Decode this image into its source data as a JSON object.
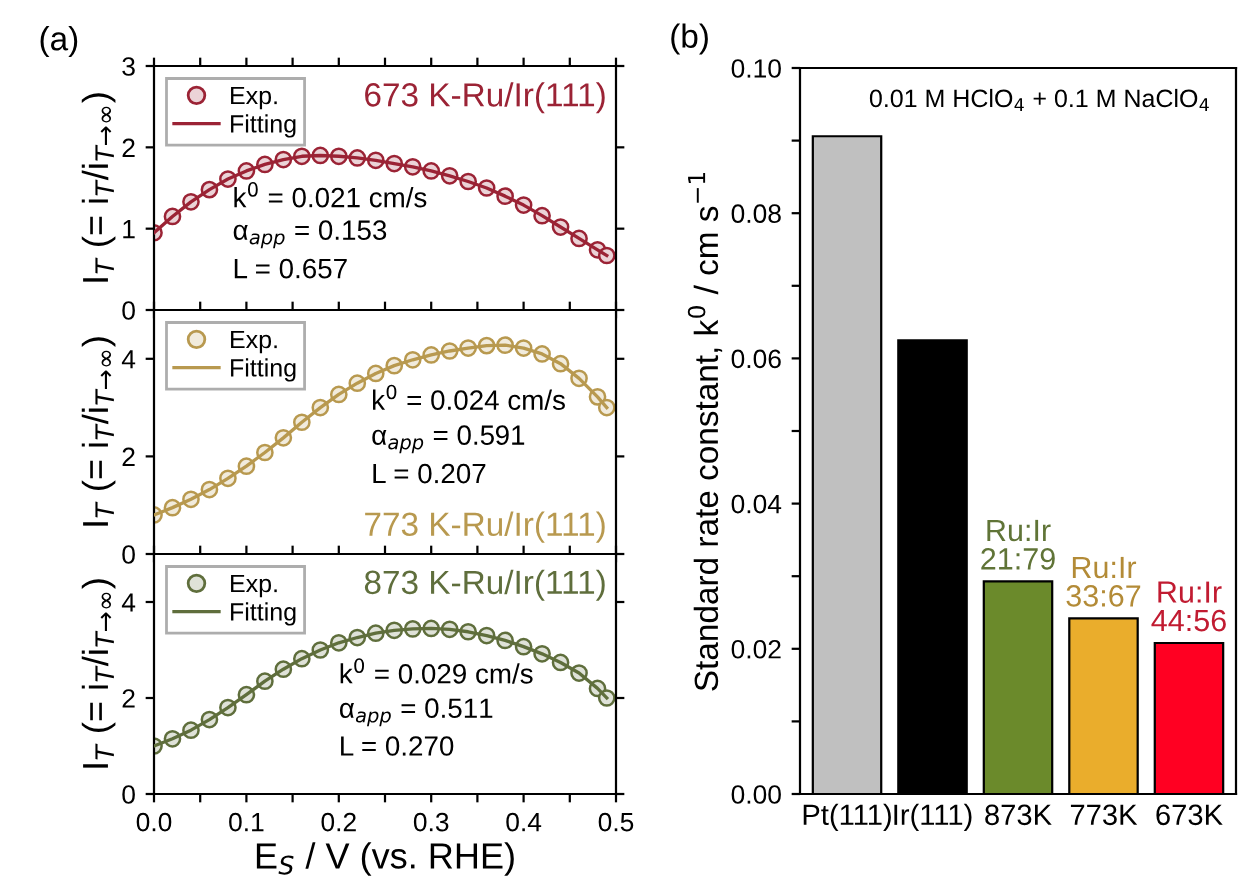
{
  "chart_data": [
    {
      "type": "line",
      "annotations": [
        "(a)",
        "673 K-Ru/Ir(111)",
        "k$^{0}$ = 0.021 cm/s",
        "α$_{app}$ = 0.153",
        "L = 0.657"
      ],
      "ylabel": "I$_{T}$ (= i$_{T}$/i$_{T→∞}$)",
      "xlim": [
        0,
        0.5
      ],
      "xticks": [
        0,
        {
          "value": 0.05,
          "label": null
        },
        0.1,
        {
          "value": 0.15,
          "label": null
        },
        0.2,
        {
          "value": 0.25,
          "label": null
        },
        0.3,
        {
          "value": 0.35,
          "label": null
        },
        0.4,
        {
          "value": 0.45,
          "label": null
        },
        0.5
      ],
      "ylim": [
        0,
        3
      ],
      "yticks": [
        0,
        1,
        2,
        3
      ],
      "tick_labels": "y",
      "legend": "top left",
      "x": [
        0,
        0.02,
        0.04,
        0.06,
        0.08,
        0.1,
        0.12,
        0.14,
        0.16,
        0.18,
        0.2,
        0.22,
        0.24,
        0.26,
        0.28,
        0.3,
        0.32,
        0.34,
        0.36,
        0.38,
        0.4,
        0.42,
        0.44,
        0.46,
        0.48,
        0.49
      ],
      "series": [
        {
          "name": "Exp.",
          "type": "scatter",
          "marker": "circle",
          "color": "#9b2335",
          "values": [
            0.95,
            1.15,
            1.33,
            1.48,
            1.61,
            1.71,
            1.79,
            1.85,
            1.89,
            1.9,
            1.89,
            1.87,
            1.84,
            1.8,
            1.76,
            1.71,
            1.65,
            1.58,
            1.5,
            1.4,
            1.29,
            1.16,
            1.02,
            0.88,
            0.74,
            0.67
          ]
        },
        {
          "name": "Fitting",
          "type": "line",
          "color": "#9b2335",
          "values": [
            0.95,
            1.15,
            1.33,
            1.48,
            1.61,
            1.71,
            1.79,
            1.85,
            1.89,
            1.9,
            1.89,
            1.87,
            1.84,
            1.8,
            1.76,
            1.71,
            1.65,
            1.58,
            1.5,
            1.4,
            1.29,
            1.16,
            1.02,
            0.88,
            0.74,
            0.67
          ]
        }
      ]
    },
    {
      "type": "line",
      "annotations": [
        "773 K-Ru/Ir(111)",
        "k$^{0}$ = 0.024 cm/s",
        "α$_{app}$ = 0.591",
        "L = 0.207"
      ],
      "ylabel": "I$_{T}$ (= i$_{T}$/i$_{T→∞}$)",
      "xlim": [
        0,
        0.5
      ],
      "xticks": [
        0,
        {
          "value": 0.05,
          "label": null
        },
        0.1,
        {
          "value": 0.15,
          "label": null
        },
        0.2,
        {
          "value": 0.25,
          "label": null
        },
        0.3,
        {
          "value": 0.35,
          "label": null
        },
        0.4,
        {
          "value": 0.45,
          "label": null
        },
        0.5
      ],
      "ylim": [
        0,
        5
      ],
      "yticks": [
        0,
        2,
        4
      ],
      "tick_labels": "y",
      "legend": "top left",
      "x": [
        0,
        0.02,
        0.04,
        0.06,
        0.08,
        0.1,
        0.12,
        0.14,
        0.16,
        0.18,
        0.2,
        0.22,
        0.24,
        0.26,
        0.28,
        0.3,
        0.32,
        0.34,
        0.36,
        0.38,
        0.4,
        0.42,
        0.44,
        0.46,
        0.48,
        0.49
      ],
      "series": [
        {
          "name": "Exp.",
          "type": "scatter",
          "marker": "circle",
          "color": "#b8994f",
          "values": [
            0.8,
            0.95,
            1.12,
            1.32,
            1.55,
            1.8,
            2.08,
            2.38,
            2.7,
            3.0,
            3.27,
            3.5,
            3.7,
            3.86,
            3.98,
            4.08,
            4.16,
            4.22,
            4.27,
            4.28,
            4.22,
            4.1,
            3.9,
            3.6,
            3.22,
            3.0
          ]
        },
        {
          "name": "Fitting",
          "type": "line",
          "color": "#b8994f",
          "values": [
            0.8,
            0.95,
            1.12,
            1.32,
            1.55,
            1.8,
            2.08,
            2.38,
            2.7,
            3.0,
            3.27,
            3.5,
            3.7,
            3.86,
            3.98,
            4.08,
            4.16,
            4.22,
            4.27,
            4.28,
            4.22,
            4.1,
            3.9,
            3.6,
            3.22,
            3.0
          ]
        }
      ]
    },
    {
      "type": "line",
      "annotations": [
        "873 K-Ru/Ir(111)",
        "k$^{0}$ = 0.029 cm/s",
        "α$_{app}$ = 0.511",
        "L = 0.270"
      ],
      "ylabel": "I$_{T}$ (= i$_{T}$/i$_{T→∞}$)",
      "xlabel": "E$_{S}$ / V (vs. RHE)",
      "xlim": [
        0,
        0.5
      ],
      "xticks": [
        {
          "value": 0,
          "label": "0.0"
        },
        {
          "value": 0.05,
          "label": null
        },
        0.1,
        {
          "value": 0.15,
          "label": null
        },
        0.2,
        {
          "value": 0.25,
          "label": null
        },
        0.3,
        {
          "value": 0.35,
          "label": null
        },
        0.4,
        {
          "value": 0.45,
          "label": null
        },
        0.5
      ],
      "ylim": [
        0,
        5
      ],
      "yticks": [
        0,
        2,
        4
      ],
      "legend": "top left",
      "x": [
        0,
        0.02,
        0.04,
        0.06,
        0.08,
        0.1,
        0.12,
        0.14,
        0.16,
        0.18,
        0.2,
        0.22,
        0.24,
        0.26,
        0.28,
        0.3,
        0.32,
        0.34,
        0.36,
        0.38,
        0.4,
        0.42,
        0.44,
        0.46,
        0.48,
        0.49
      ],
      "series": [
        {
          "name": "Exp.",
          "type": "scatter",
          "marker": "circle",
          "color": "#5f6e3c",
          "values": [
            1.0,
            1.15,
            1.33,
            1.55,
            1.8,
            2.07,
            2.35,
            2.6,
            2.82,
            3.0,
            3.15,
            3.26,
            3.35,
            3.41,
            3.44,
            3.45,
            3.43,
            3.38,
            3.3,
            3.2,
            3.07,
            2.92,
            2.74,
            2.52,
            2.2,
            2.0
          ]
        },
        {
          "name": "Fitting",
          "type": "line",
          "color": "#5f6e3c",
          "values": [
            1.0,
            1.15,
            1.33,
            1.55,
            1.8,
            2.07,
            2.35,
            2.6,
            2.82,
            3.0,
            3.15,
            3.26,
            3.35,
            3.41,
            3.44,
            3.45,
            3.43,
            3.38,
            3.3,
            3.2,
            3.07,
            2.92,
            2.74,
            2.52,
            2.2,
            2.0
          ]
        }
      ]
    },
    {
      "type": "bar",
      "annotations": [
        "(b)",
        "0.01 M HClO$_{4}$ + 0.1 M NaClO$_{4}$"
      ],
      "ylabel": "Standard rate constant, k$^{0}$ / cm s$^{−1}$",
      "categories": [
        "Pt(111)",
        "Ir(111)",
        "873K",
        "773K",
        "673K"
      ],
      "values": [
        0.0906,
        0.0625,
        0.0293,
        0.0242,
        0.0208
      ],
      "colors": [
        "#c0c0c0",
        "#000000",
        "#6b8a2b",
        "#eaad2c",
        "#ff0022"
      ],
      "value_labels": [
        null,
        null,
        "Ru:Ir\n21:79",
        "Ru:Ir\n33:67",
        "Ru:Ir\n44:56"
      ],
      "ylim": [
        0,
        0.1
      ],
      "yticks": [
        {
          "value": 0,
          "label": "0.00"
        },
        {
          "value": 0.01,
          "label": null
        },
        {
          "value": 0.02,
          "label": "0.02"
        },
        {
          "value": 0.03,
          "label": null
        },
        {
          "value": 0.04,
          "label": "0.04"
        },
        {
          "value": 0.05,
          "label": null
        },
        {
          "value": 0.06,
          "label": "0.06"
        },
        {
          "value": 0.07,
          "label": null
        },
        {
          "value": 0.08,
          "label": "0.08"
        },
        {
          "value": 0.09,
          "label": null
        },
        {
          "value": 0.1,
          "label": "0.10"
        }
      ]
    }
  ]
}
